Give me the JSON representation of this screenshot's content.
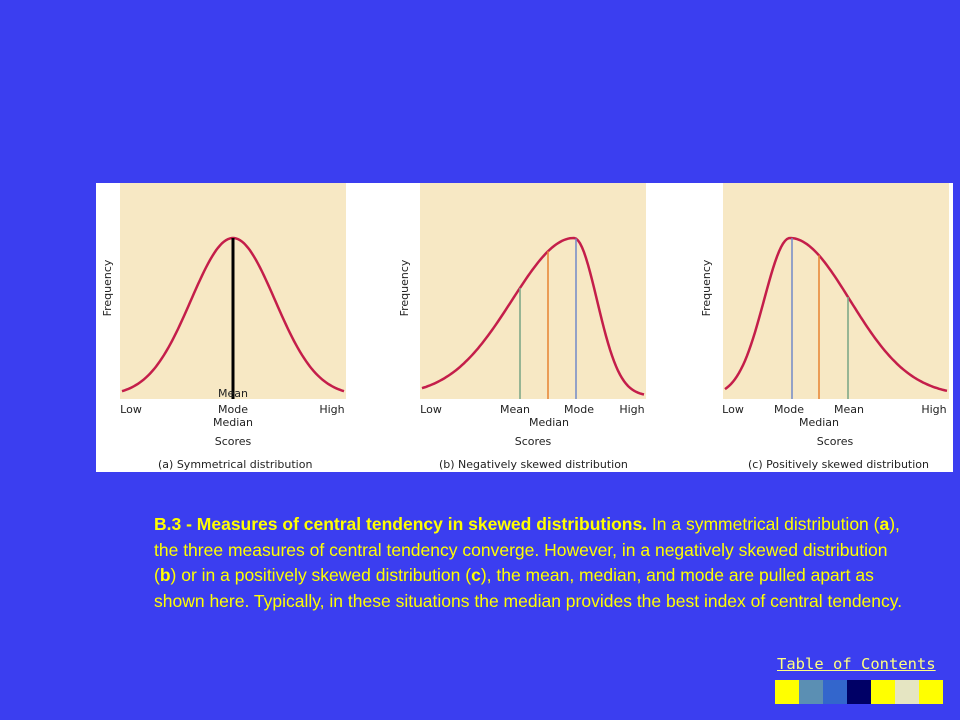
{
  "figure": {
    "panels": [
      {
        "id": "a",
        "y_label": "Frequency",
        "x_low": "Low",
        "x_high": "High",
        "scores_label": "Scores",
        "caption": "(a) Symmetrical distribution",
        "markers": [
          "Mean",
          "Mode",
          "Median"
        ]
      },
      {
        "id": "b",
        "y_label": "Frequency",
        "x_low": "Low",
        "x_high": "High",
        "scores_label": "Scores",
        "caption": "(b) Negatively skewed distribution",
        "markers": [
          "Mean",
          "Median",
          "Mode"
        ]
      },
      {
        "id": "c",
        "y_label": "Frequency",
        "x_low": "Low",
        "x_high": "High",
        "scores_label": "Scores",
        "caption": "(c) Positively skewed distribution",
        "markers": [
          "Mode",
          "Median",
          "Mean"
        ]
      }
    ],
    "colors": {
      "plot_bg": "#f7e8c4",
      "curve": "#c41e4a",
      "mean_line": "#7fa889",
      "median_line": "#e8893a",
      "mode_line": "#7a8fc8",
      "symmetric_line": "#000000"
    }
  },
  "caption": {
    "bold": "B.3 - Measures of central tendency in skewed distributions.",
    "pre_a": " In a symmetrical distribution (",
    "a": "a",
    "mid1": "), the three measures of central tendency converge. However, in a negatively skewed distribution (",
    "b": "b",
    "mid2": ") or in a positively skewed distribution (",
    "c": "c",
    "rest": "), the mean, median, and mode are pulled apart as shown here. Typically, in these situations the median provides the best index of central tendency."
  },
  "nav": {
    "toc_label": "Table of Contents",
    "squares": [
      "#ffff00",
      "#5b8fb3",
      "#3366cc",
      "#000066",
      "#ffff00",
      "#e5e5c2",
      "#ffff00"
    ]
  }
}
